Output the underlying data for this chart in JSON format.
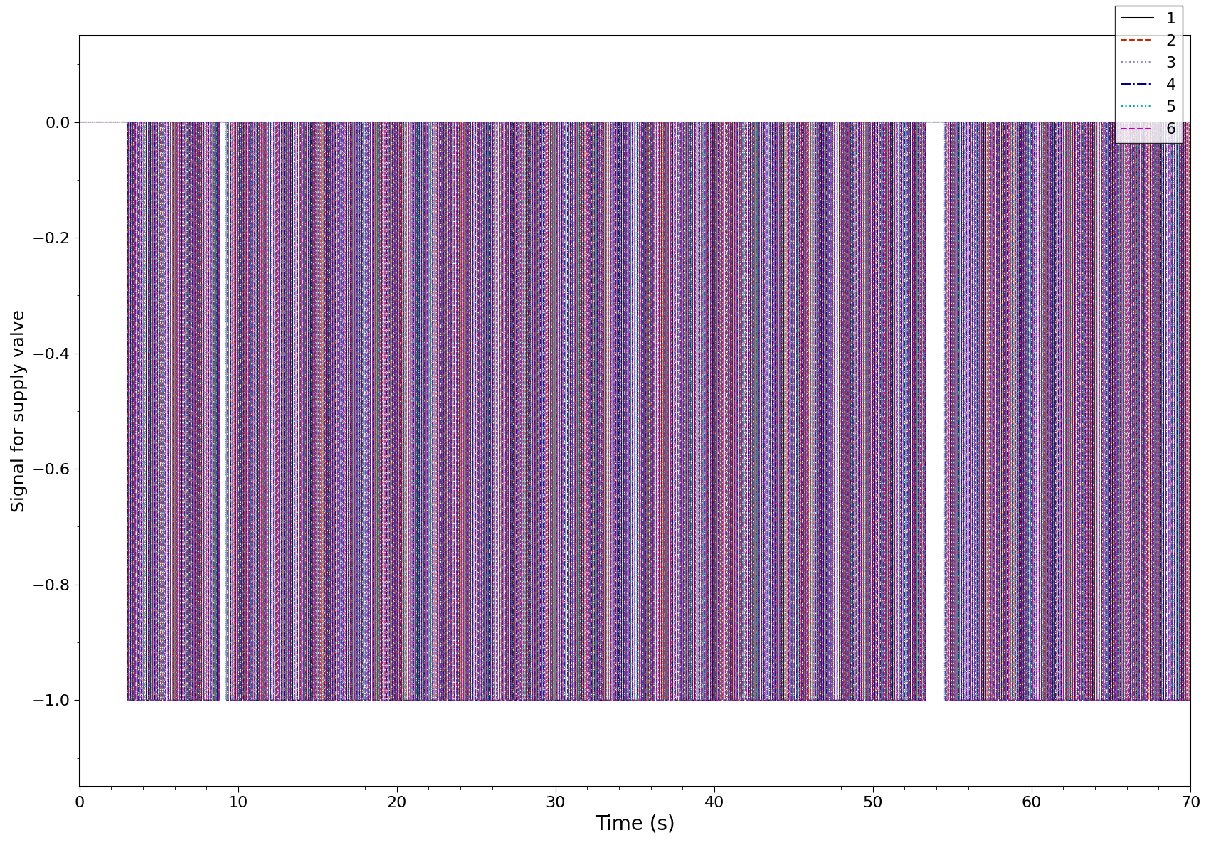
{
  "xlabel": "Time (s)",
  "ylabel": "Signal for supply valve",
  "xlim": [
    0,
    70
  ],
  "ylim": [
    -1.15,
    0.15
  ],
  "yticks": [
    0.0,
    -0.2,
    -0.4,
    -0.6,
    -0.8,
    -1.0
  ],
  "xticks": [
    0,
    10,
    20,
    30,
    40,
    50,
    60,
    70
  ],
  "legend_labels": [
    "1",
    "2",
    "3",
    "4",
    "5",
    "6"
  ],
  "legend_colors": [
    "#000000",
    "#cc2200",
    "#8888bb",
    "#000088",
    "#00aaaa",
    "#bb00bb"
  ],
  "legend_styles": [
    "-",
    "--",
    ":",
    "-.",
    ":",
    "--"
  ],
  "num_series": 6,
  "xlabel_fontsize": 20,
  "ylabel_fontsize": 18,
  "tick_fontsize": 16,
  "legend_fontsize": 16,
  "figsize": [
    17.02,
    11.88
  ],
  "dpi": 100,
  "high_freq_period": 0.3,
  "high_freq_duty": 0.5,
  "freq_offsets": [
    0.0,
    0.05,
    0.1,
    0.15,
    0.2,
    0.25
  ],
  "envelope_on_intervals": [
    [
      3.0,
      70.0
    ]
  ],
  "envelope_off_intervals": [
    [
      0.0,
      3.0
    ],
    [
      8.8,
      9.2
    ],
    [
      53.5,
      54.5
    ]
  ],
  "dt": 0.005
}
